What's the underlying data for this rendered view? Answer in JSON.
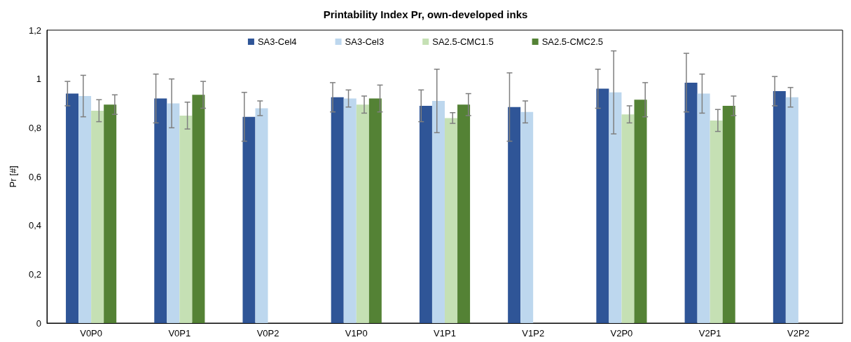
{
  "chart_data": {
    "type": "bar",
    "title": "Printability Index Pr, own-developed inks",
    "ylabel": "Pr [#]",
    "categories": [
      "V0P0",
      "V0P1",
      "V0P2",
      "V1P0",
      "V1P1",
      "V1P2",
      "V2P0",
      "V2P1",
      "V2P2"
    ],
    "series": [
      {
        "name": "SA3-Cel4",
        "color": "#2f5597",
        "values": [
          0.94,
          0.92,
          0.845,
          0.925,
          0.89,
          0.885,
          0.96,
          0.985,
          0.95
        ],
        "errors": [
          0.05,
          0.1,
          0.1,
          0.06,
          0.065,
          0.14,
          0.08,
          0.12,
          0.06
        ]
      },
      {
        "name": "SA3-Cel3",
        "color": "#bdd7ee",
        "values": [
          0.93,
          0.9,
          0.88,
          0.92,
          0.91,
          0.865,
          0.945,
          0.94,
          0.925
        ],
        "errors": [
          0.085,
          0.1,
          0.03,
          0.035,
          0.13,
          0.045,
          0.17,
          0.08,
          0.04
        ]
      },
      {
        "name": "SA2.5-CMC1.5",
        "color": "#c5e0b4",
        "values": [
          0.87,
          0.85,
          null,
          0.895,
          0.84,
          null,
          0.855,
          0.83,
          null
        ],
        "errors": [
          0.045,
          0.055,
          null,
          0.035,
          0.022,
          null,
          0.035,
          0.045,
          null
        ]
      },
      {
        "name": "SA2.5-CMC2.5",
        "color": "#548235",
        "values": [
          0.895,
          0.935,
          null,
          0.92,
          0.895,
          null,
          0.915,
          0.89,
          null
        ],
        "errors": [
          0.04,
          0.055,
          null,
          0.055,
          0.045,
          null,
          0.07,
          0.04,
          null
        ]
      }
    ],
    "ylim": [
      0,
      1.2
    ],
    "yticks": [
      0,
      {
        "value": 0.2,
        "label": "0,2"
      },
      {
        "value": 0.4,
        "label": "0,4"
      },
      {
        "value": 0.6,
        "label": "0,6"
      },
      {
        "value": 0.8,
        "label": "0,8"
      },
      1,
      {
        "value": 1.2,
        "label": "1,2"
      }
    ],
    "grid": false,
    "legend": "top"
  }
}
